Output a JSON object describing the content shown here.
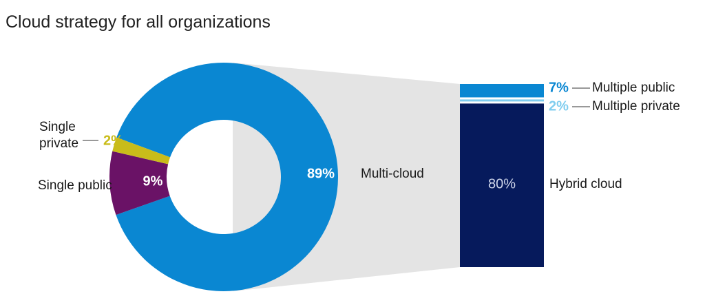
{
  "title": "Cloud strategy for all organizations",
  "chart_data": [
    {
      "type": "pie",
      "variant": "donut",
      "slices": [
        {
          "label": "Multi-cloud",
          "value": 89,
          "value_label": "89%",
          "color": "#0A87D2"
        },
        {
          "label": "Single public",
          "value": 9,
          "value_label": "9%",
          "color": "#6A1266"
        },
        {
          "label": "Single private",
          "label_lines": [
            "Single",
            "private"
          ],
          "value": 2,
          "value_label": "2%",
          "color": "#C9BC1A"
        }
      ]
    },
    {
      "type": "bar",
      "variant": "stacked-breakdown",
      "breakdown_of": "Multi-cloud",
      "segments": [
        {
          "label": "Multiple public",
          "value": 7,
          "value_label": "7%",
          "color": "#0A87D2"
        },
        {
          "label": "Multiple private",
          "value": 2,
          "value_label": "2%",
          "color": "#7FCDEF"
        },
        {
          "label": "Hybrid cloud",
          "value": 80,
          "value_label": "80%",
          "color": "#061A5C"
        }
      ]
    }
  ],
  "colors": {
    "connector": "#E4E4E4",
    "leader": "#333333"
  }
}
